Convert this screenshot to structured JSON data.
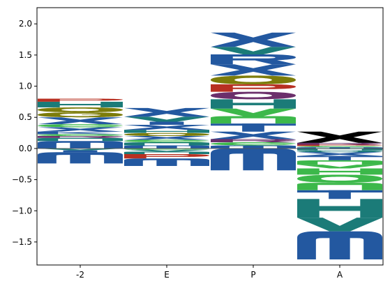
{
  "chart_data": {
    "type": "logo",
    "title": "",
    "xlabel": "",
    "ylabel": "",
    "categories": [
      "-2",
      "E",
      "P",
      "A"
    ],
    "ylim": [
      -1.87,
      2.26
    ],
    "yticks": [
      -1.5,
      -1.0,
      -0.5,
      0.0,
      0.5,
      1.0,
      1.5,
      2.0
    ],
    "ytick_labels": [
      "−1.5",
      "−1.0",
      "−0.5",
      "0.0",
      "0.5",
      "1.0",
      "1.5",
      "2.0"
    ],
    "zero_line": true,
    "grid": false,
    "colors": {
      "blue": "#2358a0",
      "teal": "#1b7b78",
      "green": "#3cb84a",
      "olive": "#7c7c0a",
      "red": "#b83022",
      "purple": "#6b2f6b",
      "black": "#000000"
    },
    "positions": [
      {
        "label": "-2",
        "positive": [
          {
            "letter": "m",
            "height": 0.12,
            "color": "blue"
          },
          {
            "letter": "n",
            "height": 0.05,
            "color": "teal"
          },
          {
            "letter": "r",
            "height": 0.03,
            "color": "purple"
          },
          {
            "letter": "e",
            "height": 0.03,
            "color": "green"
          },
          {
            "letter": "k",
            "height": 0.04,
            "color": "blue"
          },
          {
            "letter": "x",
            "height": 0.07,
            "color": "blue"
          },
          {
            "letter": "e",
            "height": 0.05,
            "color": "green"
          },
          {
            "letter": "x",
            "height": 0.11,
            "color": "blue"
          },
          {
            "letter": "g",
            "height": 0.08,
            "color": "olive"
          },
          {
            "letter": "o",
            "height": 0.08,
            "color": "olive"
          },
          {
            "letter": "h",
            "height": 0.09,
            "color": "teal"
          },
          {
            "letter": "p",
            "height": 0.05,
            "color": "red"
          }
        ],
        "negative": [
          {
            "letter": "v",
            "height": 0.03,
            "color": "teal"
          },
          {
            "letter": "i",
            "height": 0.03,
            "color": "blue"
          },
          {
            "letter": "m",
            "height": 0.18,
            "color": "blue"
          }
        ]
      },
      {
        "label": "E",
        "positive": [
          {
            "letter": "m",
            "height": 0.05,
            "color": "blue"
          },
          {
            "letter": "n",
            "height": 0.05,
            "color": "teal"
          },
          {
            "letter": "e",
            "height": 0.04,
            "color": "green"
          },
          {
            "letter": "x",
            "height": 0.06,
            "color": "blue"
          },
          {
            "letter": "o",
            "height": 0.05,
            "color": "olive"
          },
          {
            "letter": "h",
            "height": 0.05,
            "color": "teal"
          },
          {
            "letter": "x",
            "height": 0.08,
            "color": "blue"
          },
          {
            "letter": "i",
            "height": 0.05,
            "color": "blue"
          },
          {
            "letter": "v",
            "height": 0.08,
            "color": "teal"
          },
          {
            "letter": "x",
            "height": 0.14,
            "color": "blue"
          }
        ],
        "negative": [
          {
            "letter": "e",
            "height": 0.02,
            "color": "green"
          },
          {
            "letter": "v",
            "height": 0.03,
            "color": "teal"
          },
          {
            "letter": "n",
            "height": 0.04,
            "color": "teal"
          },
          {
            "letter": "p",
            "height": 0.07,
            "color": "red"
          },
          {
            "letter": "m",
            "height": 0.12,
            "color": "blue"
          }
        ]
      },
      {
        "label": "P",
        "positive": [
          {
            "letter": "m",
            "height": 0.05,
            "color": "blue"
          },
          {
            "letter": "e",
            "height": 0.05,
            "color": "green"
          },
          {
            "letter": "r",
            "height": 0.05,
            "color": "purple"
          },
          {
            "letter": "x",
            "height": 0.12,
            "color": "blue"
          },
          {
            "letter": "t",
            "height": 0.13,
            "color": "blue"
          },
          {
            "letter": "n",
            "height": 0.12,
            "color": "green"
          },
          {
            "letter": "v",
            "height": 0.12,
            "color": "green"
          },
          {
            "letter": "h",
            "height": 0.15,
            "color": "teal"
          },
          {
            "letter": "o",
            "height": 0.12,
            "color": "purple"
          },
          {
            "letter": "p",
            "height": 0.12,
            "color": "red"
          },
          {
            "letter": "o",
            "height": 0.14,
            "color": "olive"
          },
          {
            "letter": "x",
            "height": 0.18,
            "color": "blue"
          },
          {
            "letter": "r",
            "height": 0.16,
            "color": "blue"
          },
          {
            "letter": "v",
            "height": 0.12,
            "color": "teal"
          },
          {
            "letter": "x",
            "height": 0.23,
            "color": "blue"
          }
        ],
        "negative": [
          {
            "letter": "m",
            "height": 0.35,
            "color": "blue"
          }
        ]
      },
      {
        "label": "A",
        "positive": [
          {
            "letter": "m",
            "height": 0.02,
            "color": "blue"
          },
          {
            "letter": "e",
            "height": 0.02,
            "color": "green"
          },
          {
            "letter": "p",
            "height": 0.02,
            "color": "red"
          },
          {
            "letter": "r",
            "height": 0.03,
            "color": "purple"
          },
          {
            "letter": "x",
            "height": 0.18,
            "color": "black"
          }
        ],
        "negative": [
          {
            "letter": "n",
            "height": 0.03,
            "color": "teal"
          },
          {
            "letter": "o",
            "height": 0.03,
            "color": "teal"
          },
          {
            "letter": "x",
            "height": 0.06,
            "color": "blue"
          },
          {
            "letter": "t",
            "height": 0.07,
            "color": "blue"
          },
          {
            "letter": "n",
            "height": 0.07,
            "color": "green"
          },
          {
            "letter": "v",
            "height": 0.06,
            "color": "green"
          },
          {
            "letter": "h",
            "height": 0.1,
            "color": "green"
          },
          {
            "letter": "o",
            "height": 0.13,
            "color": "green"
          },
          {
            "letter": "n",
            "height": 0.12,
            "color": "green"
          },
          {
            "letter": "t",
            "height": 0.14,
            "color": "blue"
          },
          {
            "letter": "h",
            "height": 0.3,
            "color": "teal"
          },
          {
            "letter": "v",
            "height": 0.22,
            "color": "teal"
          },
          {
            "letter": "m",
            "height": 0.45,
            "color": "blue"
          }
        ]
      }
    ]
  }
}
